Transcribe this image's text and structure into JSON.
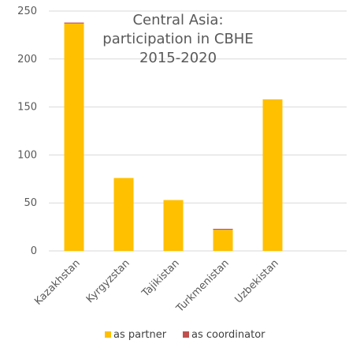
{
  "chart_data": {
    "type": "bar",
    "stacked": true,
    "title_lines": [
      "Central Asia:",
      "participation in CBHE",
      "2015-2020"
    ],
    "xlabel": "",
    "ylabel": "",
    "ylim": [
      0,
      250
    ],
    "yticks": [
      0,
      50,
      100,
      150,
      200,
      250
    ],
    "grid": true,
    "legend_position": "bottom",
    "categories": [
      "Kazakhstan",
      "Kyrgyzstan",
      "Tajikistan",
      "Turkmenistan",
      "Uzbekistan"
    ],
    "series": [
      {
        "name": "as partner",
        "color": "#FFC000",
        "values": [
          237,
          76,
          53,
          22,
          158
        ]
      },
      {
        "name": "as coordinator",
        "color": "#C0504D",
        "values": [
          1,
          0,
          0,
          1,
          0
        ]
      }
    ]
  }
}
